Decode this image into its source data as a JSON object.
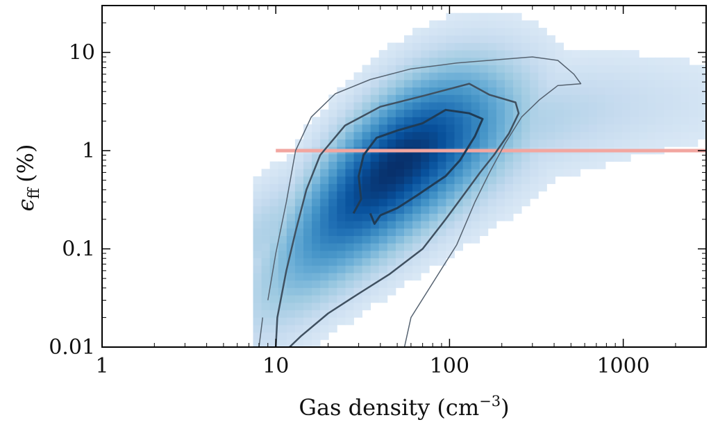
{
  "chart_data": {
    "type": "heatmap",
    "title": "",
    "xlabel": "Gas density (cm",
    "xlabel_sup": "−3",
    "xlabel_close": ")",
    "ylabel_symbol": "ϵ",
    "ylabel_sub": "ff",
    "ylabel_unit": "(%)",
    "x_scale": "log",
    "y_scale": "log",
    "xlim": [
      1,
      3000
    ],
    "ylim": [
      0.01,
      30
    ],
    "x_ticks": [
      {
        "value": 1,
        "label": "1"
      },
      {
        "value": 10,
        "label": "10"
      },
      {
        "value": 100,
        "label": "100"
      },
      {
        "value": 1000,
        "label": "1000"
      }
    ],
    "y_ticks": [
      {
        "value": 0.01,
        "label": "0.01"
      },
      {
        "value": 0.1,
        "label": "0.1"
      },
      {
        "value": 1,
        "label": "1"
      },
      {
        "value": 10,
        "label": "10"
      }
    ],
    "reference_line": {
      "y": 1,
      "x_from": 10,
      "x_to": 3000,
      "color": "#f2a6a0"
    },
    "colormap": [
      "#f7fbff",
      "#deebf7",
      "#c6dbef",
      "#9ecae1",
      "#6baed6",
      "#4292c6",
      "#2171b5",
      "#08519c",
      "#08306b"
    ],
    "contours": [
      {
        "level": "outer",
        "color": "#556270",
        "points": [
          [
            9,
            0.03
          ],
          [
            10,
            0.09
          ],
          [
            11.5,
            0.3
          ],
          [
            13,
            1.0
          ],
          [
            16,
            2.2
          ],
          [
            22,
            3.8
          ],
          [
            35,
            5.3
          ],
          [
            60,
            6.8
          ],
          [
            110,
            7.8
          ],
          [
            200,
            8.5
          ],
          [
            300,
            9.0
          ],
          [
            420,
            8.3
          ],
          [
            520,
            6.0
          ],
          [
            570,
            4.8
          ],
          [
            420,
            4.6
          ],
          [
            330,
            3.3
          ],
          [
            260,
            2.2
          ],
          [
            210,
            1.2
          ],
          [
            170,
            0.6
          ],
          [
            140,
            0.3
          ],
          [
            110,
            0.11
          ],
          [
            80,
            0.045
          ],
          [
            60,
            0.02
          ],
          [
            55,
            0.01
          ]
        ]
      },
      {
        "level": "outer-left-start",
        "color": "#556270",
        "points": [
          [
            8,
            0.01
          ],
          [
            8.4,
            0.02
          ]
        ]
      },
      {
        "level": "middle",
        "color": "#3f5060",
        "points": [
          [
            10,
            0.01
          ],
          [
            10.2,
            0.02
          ],
          [
            11.5,
            0.06
          ],
          [
            13,
            0.15
          ],
          [
            15,
            0.4
          ],
          [
            18,
            0.9
          ],
          [
            25,
            1.8
          ],
          [
            40,
            2.8
          ],
          [
            70,
            3.6
          ],
          [
            130,
            4.8
          ],
          [
            170,
            3.7
          ],
          [
            240,
            3.1
          ],
          [
            250,
            2.4
          ],
          [
            220,
            1.5
          ],
          [
            180,
            0.9
          ],
          [
            150,
            0.6
          ],
          [
            120,
            0.35
          ],
          [
            95,
            0.2
          ],
          [
            70,
            0.1
          ],
          [
            45,
            0.055
          ],
          [
            30,
            0.035
          ],
          [
            20,
            0.022
          ],
          [
            14,
            0.013
          ],
          [
            12,
            0.01
          ]
        ]
      },
      {
        "level": "inner",
        "color": "#1f3b55",
        "points": [
          [
            28,
            0.23
          ],
          [
            31,
            0.32
          ],
          [
            30,
            0.55
          ],
          [
            32,
            0.9
          ],
          [
            38,
            1.35
          ],
          [
            50,
            1.6
          ],
          [
            70,
            1.9
          ],
          [
            95,
            2.6
          ],
          [
            130,
            2.4
          ],
          [
            155,
            2.1
          ],
          [
            140,
            1.4
          ],
          [
            115,
            0.8
          ],
          [
            95,
            0.55
          ],
          [
            80,
            0.45
          ],
          [
            65,
            0.35
          ],
          [
            50,
            0.26
          ],
          [
            40,
            0.22
          ],
          [
            37,
            0.18
          ],
          [
            35,
            0.23
          ]
        ]
      }
    ],
    "density_peak": {
      "x": 50,
      "y": 0.7
    }
  }
}
